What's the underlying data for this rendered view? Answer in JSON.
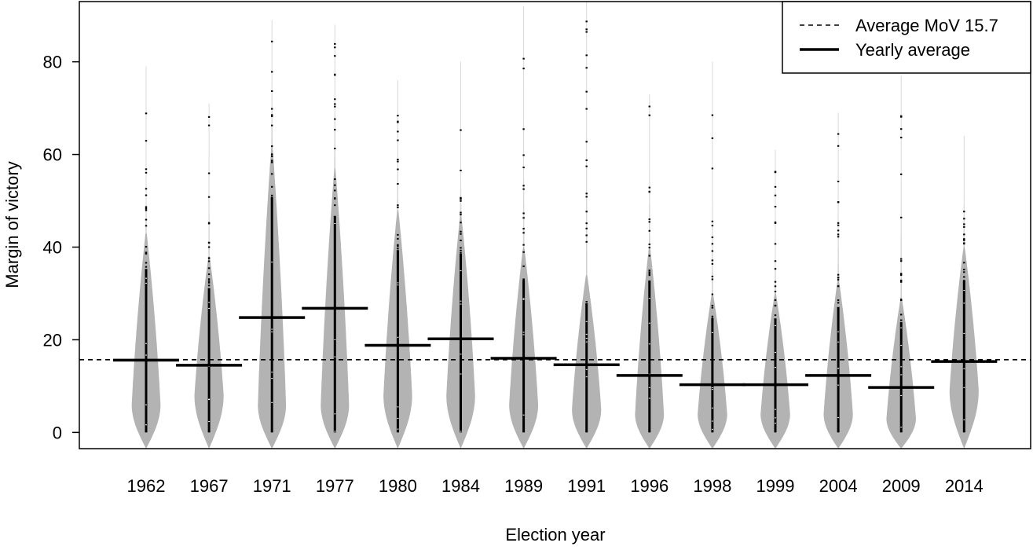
{
  "chart_data": {
    "type": "violin",
    "xlabel": "Election year",
    "ylabel": "Margin of victory",
    "ylim": [
      -3.5,
      93
    ],
    "yticks": [
      0,
      20,
      40,
      60,
      80
    ],
    "categories": [
      "1962",
      "1967",
      "1971",
      "1977",
      "1980",
      "1984",
      "1989",
      "1991",
      "1996",
      "1998",
      "1999",
      "2004",
      "2009",
      "2014"
    ],
    "yearly_average": [
      15.6,
      14.5,
      24.8,
      26.8,
      18.8,
      20.2,
      16.0,
      14.6,
      12.3,
      10.3,
      10.3,
      12.3,
      9.7,
      15.3
    ],
    "max_margin": [
      79,
      71,
      89,
      88,
      76,
      80,
      92,
      93,
      73,
      80,
      61,
      69,
      77,
      64
    ],
    "bulk_top": [
      43,
      38,
      62,
      57,
      48,
      47,
      40,
      34,
      40,
      30,
      30,
      33,
      29,
      40
    ],
    "mode": [
      6,
      8,
      6,
      6,
      8,
      8,
      6,
      5,
      4,
      4,
      4,
      4,
      3,
      9
    ],
    "overall_average": {
      "label": "Average MoV 15.7",
      "value": 15.7
    },
    "legend": {
      "placement": "top-right",
      "entries": [
        {
          "label": "Average MoV 15.7",
          "style": "dashed"
        },
        {
          "label": "Yearly average",
          "style": "solid"
        }
      ]
    },
    "colors": {
      "violin": "#b3b3b3",
      "line": "#000000",
      "background": "#ffffff"
    }
  }
}
